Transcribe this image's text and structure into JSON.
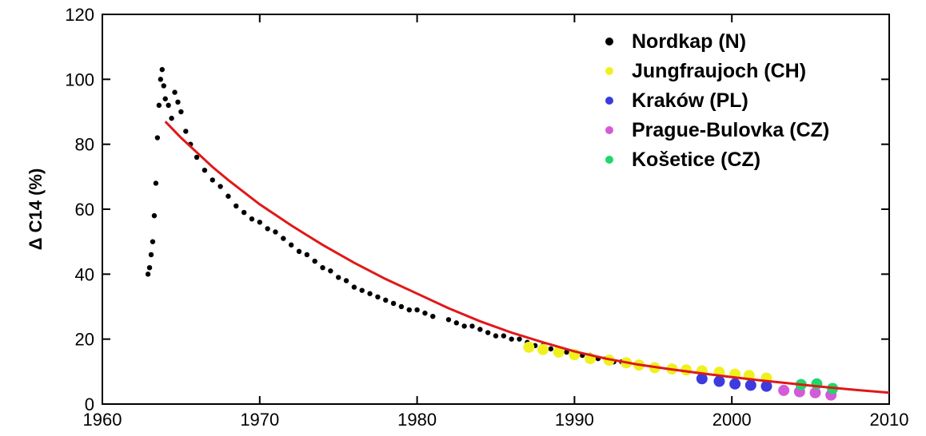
{
  "chart_data": {
    "type": "scatter",
    "title": "",
    "xlabel": "",
    "ylabel": "Δ C14  (%)",
    "xlim": [
      1960,
      2010
    ],
    "ylim": [
      0,
      120
    ],
    "xticks": [
      "1960",
      "1970",
      "1980",
      "1990",
      "2000",
      "2010"
    ],
    "yticks": [
      "0",
      "20",
      "40",
      "60",
      "80",
      "100",
      "120"
    ],
    "grid": false,
    "legend_position": "top-right",
    "series": [
      {
        "name": "Nordkap (N)",
        "color": "#000000",
        "x": [
          1962.9,
          1963.0,
          1963.1,
          1963.2,
          1963.3,
          1963.4,
          1963.5,
          1963.6,
          1963.7,
          1963.8,
          1963.9,
          1964.0,
          1964.2,
          1964.4,
          1964.6,
          1964.8,
          1965.0,
          1965.3,
          1965.6,
          1966.0,
          1966.5,
          1967.0,
          1967.5,
          1968.0,
          1968.5,
          1969.0,
          1969.5,
          1970.0,
          1970.5,
          1971.0,
          1971.5,
          1972.0,
          1972.5,
          1973.0,
          1973.5,
          1974.0,
          1974.5,
          1975.0,
          1975.5,
          1976.0,
          1976.5,
          1977.0,
          1977.5,
          1978.0,
          1978.5,
          1979.0,
          1979.5,
          1980.0,
          1980.5,
          1981.0,
          1982.0,
          1982.5,
          1983.0,
          1983.5,
          1984.0,
          1984.5,
          1985.0,
          1985.5,
          1986.0,
          1986.5,
          1987.0,
          1987.5,
          1988.0,
          1988.5,
          1989.0,
          1989.5,
          1990.0,
          1990.5,
          1991.0,
          1991.5,
          1992.0,
          1992.5,
          1993.0
        ],
        "y": [
          40,
          42,
          46,
          50,
          58,
          68,
          82,
          92,
          100,
          103,
          98,
          94,
          92,
          88,
          96,
          93,
          90,
          84,
          80,
          76,
          72,
          69,
          67,
          64,
          61,
          59,
          57,
          56,
          54,
          53,
          51,
          49,
          47,
          46,
          44,
          42,
          41,
          39,
          38,
          36,
          35,
          34,
          33,
          32,
          31,
          30,
          29,
          29,
          28,
          27,
          26,
          25,
          24,
          24,
          23,
          22,
          21,
          21,
          20,
          20,
          19,
          18,
          18,
          17,
          16,
          16,
          15,
          15,
          15,
          14,
          14,
          13,
          13
        ]
      },
      {
        "name": "Jungfraujoch (CH)",
        "color": "#f0f020",
        "x": [
          1987.1,
          1988.0,
          1989.0,
          1990.0,
          1991.0,
          1992.2,
          1993.3,
          1994.1,
          1995.1,
          1996.2,
          1997.1,
          1998.1,
          1999.2,
          2000.2,
          2001.1,
          2002.2
        ],
        "y": [
          17.5,
          16.8,
          16.0,
          15.2,
          14.0,
          13.5,
          12.7,
          12.0,
          11.2,
          10.8,
          10.5,
          10.2,
          9.8,
          9.2,
          8.8,
          8.0
        ]
      },
      {
        "name": "Kraków (PL)",
        "color": "#3b3be0",
        "x": [
          1998.1,
          1999.2,
          2000.2,
          2001.2,
          2002.2
        ],
        "y": [
          7.8,
          7.0,
          6.2,
          5.8,
          5.5
        ]
      },
      {
        "name": "Prague-Bulovka (CZ)",
        "color": "#d45ad8",
        "x": [
          2003.3,
          2004.3,
          2005.3,
          2006.3
        ],
        "y": [
          4.2,
          3.8,
          3.5,
          2.8
        ]
      },
      {
        "name": "Košetice (CZ)",
        "color": "#1ed86a",
        "x": [
          2004.4,
          2005.4,
          2006.4
        ],
        "y": [
          6.0,
          6.2,
          4.8
        ]
      }
    ],
    "fit_curve": {
      "color": "#e01818",
      "x": [
        1964,
        1965,
        1966,
        1967,
        1968,
        1970,
        1972,
        1974,
        1976,
        1978,
        1980,
        1982,
        1984,
        1986,
        1988,
        1990,
        1992,
        1994,
        1996,
        1998,
        2000,
        2002,
        2004,
        2006,
        2008,
        2010
      ],
      "y": [
        87,
        82,
        77.5,
        73,
        69,
        61.5,
        55,
        49,
        43.5,
        38.5,
        34,
        29.5,
        25.5,
        22,
        19,
        16.2,
        14,
        12.2,
        10.8,
        9.5,
        8.3,
        7.2,
        6.2,
        5.2,
        4.3,
        3.5
      ]
    }
  }
}
